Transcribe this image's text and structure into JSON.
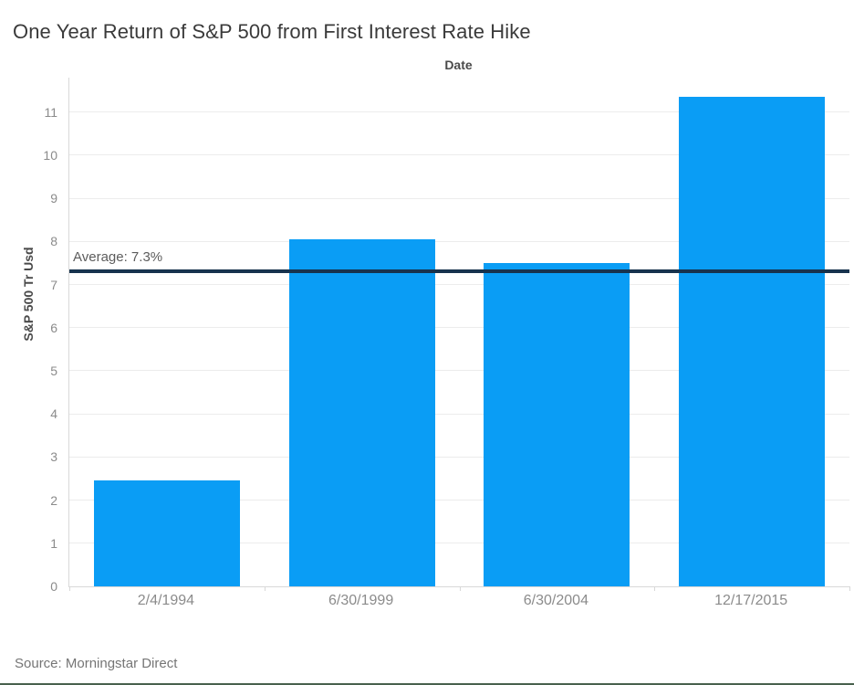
{
  "title": "One Year Return of S&P 500 from First Interest Rate Hike",
  "source": "Source: Morningstar Direct",
  "chart_data": {
    "type": "bar",
    "title": "One Year Return of S&P 500 from First Interest Rate Hike",
    "top_axis_label": "Date",
    "xlabel": "Date",
    "ylabel": "S&P 500 Tr Usd",
    "categories": [
      "2/4/1994",
      "6/30/1999",
      "6/30/2004",
      "12/17/2015"
    ],
    "values": [
      2.45,
      8.05,
      7.5,
      11.35
    ],
    "y_ticks": [
      0,
      1,
      2,
      3,
      4,
      5,
      6,
      7,
      8,
      9,
      10,
      11
    ],
    "ylim": [
      0,
      11.8
    ],
    "grid": true,
    "legend": "none",
    "average_line": {
      "label": "Average: 7.3%",
      "value": 7.3
    },
    "colors": {
      "bar": "#0a9df5",
      "average_line": "#17334e",
      "gridline": "#ececec",
      "axis_line": "#d8d8d8",
      "tick_label": "#8b8b8b"
    }
  }
}
